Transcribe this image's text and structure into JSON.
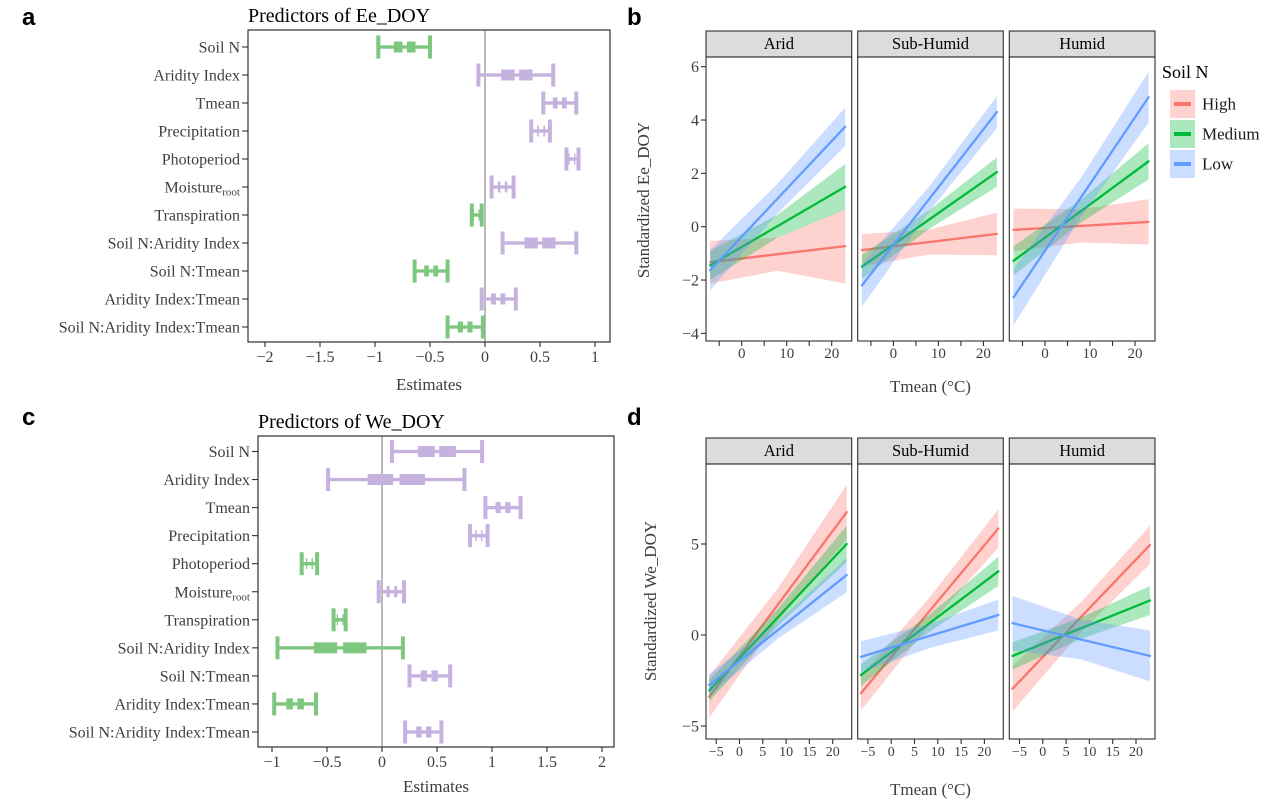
{
  "panel_letters": {
    "a": "a",
    "b": "b",
    "c": "c",
    "d": "d"
  },
  "colors": {
    "forest_green": "#7EC77F",
    "forest_purple": "#C6B2DE",
    "series_high": "#F8766D",
    "series_medium": "#00BA38",
    "series_low": "#619CFF",
    "ribbon_alpha": 0.33,
    "strip_bg": "#DCDCDC",
    "border": "#2F2F2F",
    "axis_text": "#3E3E3E",
    "title_text": "#000000",
    "zero_line": "#8C8C8C",
    "background": "#FFFFFF"
  },
  "chart_data": [
    {
      "id": "a",
      "type": "forest",
      "title": "Predictors of Ee_DOY",
      "xlabel": "Estimates",
      "x_ticks": [
        -2,
        -1.5,
        -1,
        -0.5,
        0,
        0.5,
        1
      ],
      "xlim": [
        -2.15,
        1.14
      ],
      "zero_line": true,
      "rows": [
        {
          "label": "Soil N",
          "estimate": -0.73,
          "ci": [
            -0.97,
            -0.5
          ],
          "color": "green"
        },
        {
          "label": "Aridity Index",
          "estimate": 0.29,
          "ci": [
            -0.06,
            0.62
          ],
          "color": "purple"
        },
        {
          "label": "Tmean",
          "estimate": 0.68,
          "ci": [
            0.53,
            0.83
          ],
          "color": "purple"
        },
        {
          "label": "Precipitation",
          "estimate": 0.51,
          "ci": [
            0.42,
            0.59
          ],
          "color": "purple"
        },
        {
          "label": "Photoperiod",
          "estimate": 0.79,
          "ci": [
            0.74,
            0.85
          ],
          "color": "purple"
        },
        {
          "label": "Moisture",
          "sub": "root",
          "estimate": 0.16,
          "ci": [
            0.06,
            0.26
          ],
          "color": "purple"
        },
        {
          "label": "Transpiration",
          "estimate": -0.08,
          "ci": [
            -0.12,
            -0.03
          ],
          "color": "green"
        },
        {
          "label": "Soil N:Aridity Index",
          "estimate": 0.5,
          "ci": [
            0.16,
            0.83
          ],
          "color": "purple"
        },
        {
          "label": "Soil N:Tmean",
          "estimate": -0.49,
          "ci": [
            -0.64,
            -0.34
          ],
          "color": "green"
        },
        {
          "label": "Aridity Index:Tmean",
          "estimate": 0.12,
          "ci": [
            -0.03,
            0.28
          ],
          "color": "purple"
        },
        {
          "label": "Soil N:Aridity Index:Tmean",
          "estimate": -0.18,
          "ci": [
            -0.34,
            -0.02
          ],
          "color": "green"
        }
      ]
    },
    {
      "id": "b",
      "type": "line-facets",
      "ylabel": "Standardized Ee_DOY",
      "xlabel": "Tmean (°C)",
      "facet_labels": [
        "Arid",
        "Sub-Humid",
        "Humid"
      ],
      "y_ticks": [
        -4,
        -2,
        0,
        2,
        4,
        6
      ],
      "x_ticks_major": [
        0,
        10,
        20
      ],
      "x_ticks_minor": [
        -5,
        5,
        15
      ],
      "x_range": [
        -7,
        23
      ],
      "ylim": [
        -4.28,
        6.36
      ],
      "legend": {
        "title": "Soil N",
        "entries": [
          {
            "label": "High",
            "color_key": "high"
          },
          {
            "label": "Medium",
            "color_key": "medium"
          },
          {
            "label": "Low",
            "color_key": "low"
          }
        ]
      },
      "facets": [
        {
          "facet": "Arid",
          "series": [
            {
              "name": "High",
              "color_key": "high",
              "y": [
                -1.33,
                -0.73
              ],
              "ribbon": [
                0.8,
                1.4
              ]
            },
            {
              "name": "Medium",
              "color_key": "medium",
              "y": [
                -1.45,
                1.5
              ],
              "ribbon": [
                0.55,
                0.85
              ]
            },
            {
              "name": "Low",
              "color_key": "low",
              "y": [
                -1.63,
                3.75
              ],
              "ribbon": [
                0.75,
                0.72
              ]
            }
          ]
        },
        {
          "facet": "Sub-Humid",
          "series": [
            {
              "name": "High",
              "color_key": "high",
              "y": [
                -0.88,
                -0.27
              ],
              "ribbon": [
                0.6,
                0.8
              ]
            },
            {
              "name": "Medium",
              "color_key": "medium",
              "y": [
                -1.5,
                2.05
              ],
              "ribbon": [
                0.45,
                0.55
              ]
            },
            {
              "name": "Low",
              "color_key": "low",
              "y": [
                -2.2,
                4.3
              ],
              "ribbon": [
                0.8,
                0.6
              ]
            }
          ]
        },
        {
          "facet": "Humid",
          "series": [
            {
              "name": "High",
              "color_key": "high",
              "y": [
                -0.12,
                0.18
              ],
              "ribbon": [
                0.8,
                0.85
              ]
            },
            {
              "name": "Medium",
              "color_key": "medium",
              "y": [
                -1.28,
                2.45
              ],
              "ribbon": [
                0.55,
                0.68
              ]
            },
            {
              "name": "Low",
              "color_key": "low",
              "y": [
                -2.65,
                4.85
              ],
              "ribbon": [
                1.05,
                0.95
              ]
            }
          ]
        }
      ]
    },
    {
      "id": "c",
      "type": "forest",
      "title": "Predictors of We_DOY",
      "xlabel": "Estimates",
      "x_ticks": [
        -1,
        -0.5,
        0,
        0.5,
        1,
        1.5,
        2
      ],
      "xlim": [
        -1.13,
        2.11
      ],
      "zero_line": true,
      "rows": [
        {
          "label": "Soil N",
          "estimate": 0.5,
          "ci": [
            0.09,
            0.91
          ],
          "color": "purple"
        },
        {
          "label": "Aridity Index",
          "estimate": 0.13,
          "ci": [
            -0.49,
            0.75
          ],
          "color": "purple"
        },
        {
          "label": "Tmean",
          "estimate": 1.1,
          "ci": [
            0.94,
            1.26
          ],
          "color": "purple"
        },
        {
          "label": "Precipitation",
          "estimate": 0.88,
          "ci": [
            0.8,
            0.96
          ],
          "color": "purple"
        },
        {
          "label": "Photoperiod",
          "estimate": -0.66,
          "ci": [
            -0.73,
            -0.59
          ],
          "color": "green"
        },
        {
          "label": "Moisture",
          "sub": "root",
          "estimate": 0.09,
          "ci": [
            -0.03,
            0.2
          ],
          "color": "purple"
        },
        {
          "label": "Transpiration",
          "estimate": -0.38,
          "ci": [
            -0.44,
            -0.33
          ],
          "color": "green"
        },
        {
          "label": "Soil N:Aridity Index",
          "estimate": -0.38,
          "ci": [
            -0.95,
            0.19
          ],
          "color": "green"
        },
        {
          "label": "Soil N:Tmean",
          "estimate": 0.43,
          "ci": [
            0.25,
            0.62
          ],
          "color": "purple"
        },
        {
          "label": "Aridity Index:Tmean",
          "estimate": -0.79,
          "ci": [
            -0.98,
            -0.6
          ],
          "color": "green"
        },
        {
          "label": "Soil N:Aridity Index:Tmean",
          "estimate": 0.38,
          "ci": [
            0.21,
            0.54
          ],
          "color": "purple"
        }
      ]
    },
    {
      "id": "d",
      "type": "line-facets",
      "ylabel": "Standardized We_DOY",
      "xlabel": "Tmean (°C)",
      "facet_labels": [
        "Arid",
        "Sub-Humid",
        "Humid"
      ],
      "y_ticks": [
        -5,
        0,
        5
      ],
      "x_ticks_major": [
        -5,
        0,
        5,
        10,
        15,
        20
      ],
      "x_ticks_minor": [],
      "x_range": [
        -6.5,
        23
      ],
      "ylim": [
        -5.7,
        9.4
      ],
      "facets": [
        {
          "facet": "Arid",
          "series": [
            {
              "name": "High",
              "color_key": "high",
              "y": [
                -3.4,
                6.75
              ],
              "ribbon": [
                1.15,
                1.5
              ]
            },
            {
              "name": "Medium",
              "color_key": "medium",
              "y": [
                -3.05,
                5.0
              ],
              "ribbon": [
                0.6,
                1.0
              ]
            },
            {
              "name": "Low",
              "color_key": "low",
              "y": [
                -2.75,
                3.3
              ],
              "ribbon": [
                0.6,
                0.95
              ]
            }
          ]
        },
        {
          "facet": "Sub-Humid",
          "series": [
            {
              "name": "High",
              "color_key": "high",
              "y": [
                -3.2,
                5.85
              ],
              "ribbon": [
                0.95,
                1.05
              ]
            },
            {
              "name": "Medium",
              "color_key": "medium",
              "y": [
                -2.2,
                3.5
              ],
              "ribbon": [
                0.6,
                0.8
              ]
            },
            {
              "name": "Low",
              "color_key": "low",
              "y": [
                -1.2,
                1.1
              ],
              "ribbon": [
                0.85,
                0.85
              ]
            }
          ]
        },
        {
          "facet": "Humid",
          "series": [
            {
              "name": "High",
              "color_key": "high",
              "y": [
                -2.95,
                4.95
              ],
              "ribbon": [
                1.25,
                1.05
              ]
            },
            {
              "name": "Medium",
              "color_key": "medium",
              "y": [
                -1.15,
                1.9
              ],
              "ribbon": [
                0.75,
                0.8
              ]
            },
            {
              "name": "Low",
              "color_key": "low",
              "y": [
                0.65,
                -1.15
              ],
              "ribbon": [
                1.5,
                1.4
              ]
            }
          ]
        }
      ]
    }
  ]
}
